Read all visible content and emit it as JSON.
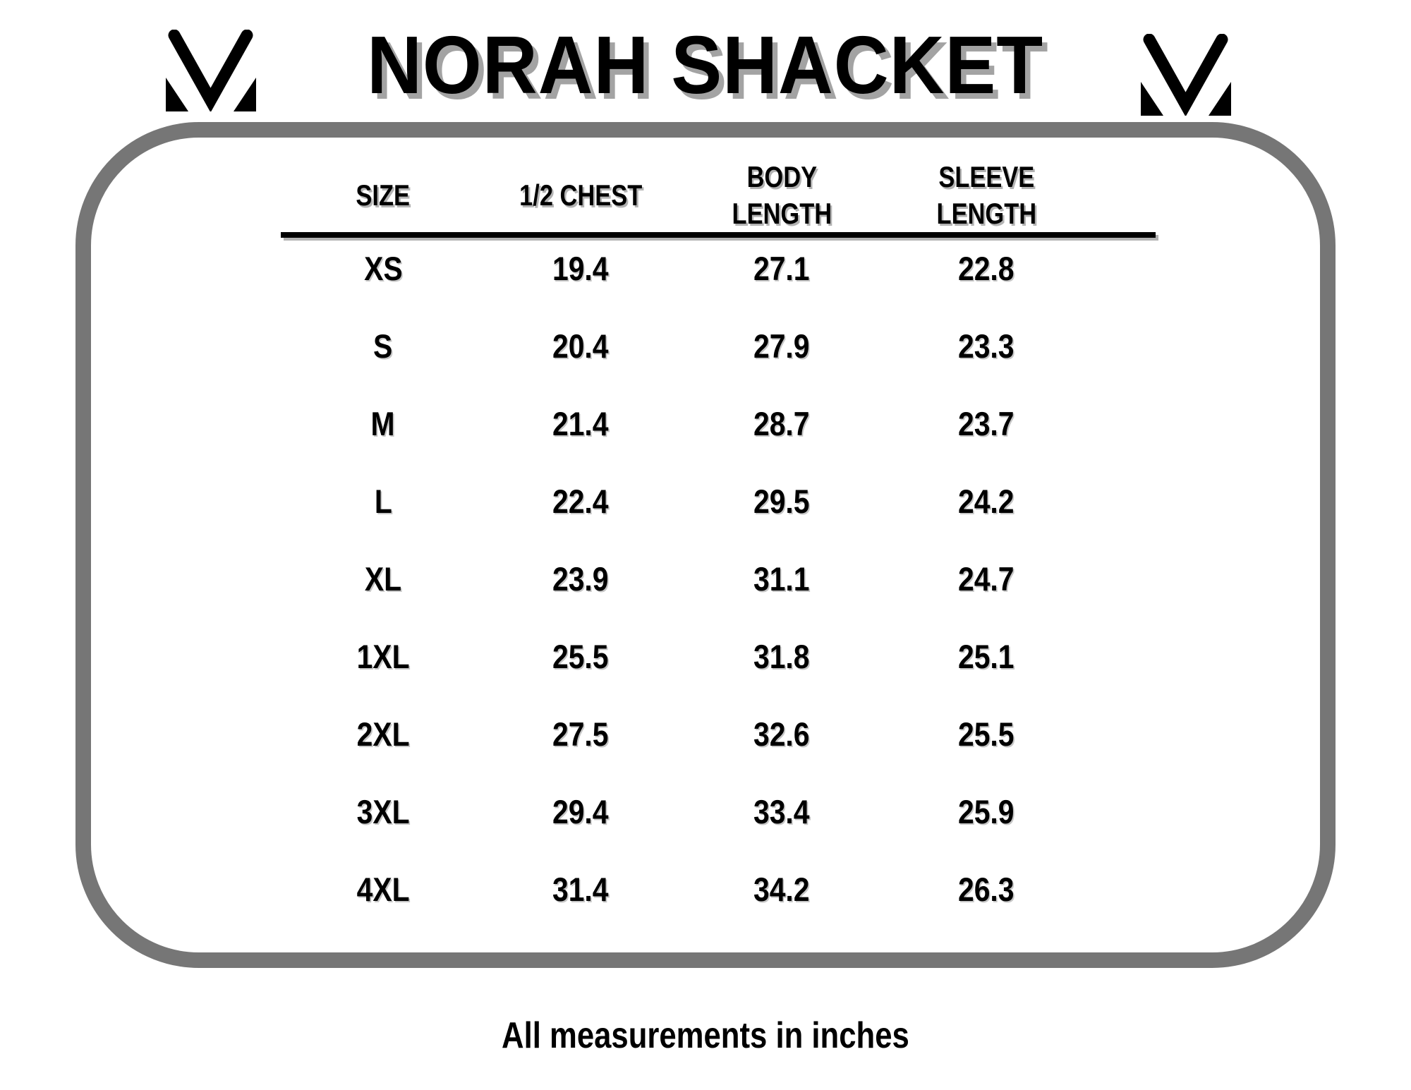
{
  "header": {
    "title": "NORAH SHACKET",
    "logo_icon": "m-monogram"
  },
  "table": {
    "columns": [
      "SIZE",
      "1/2 CHEST",
      "BODY\nLENGTH",
      "SLEEVE\nLENGTH"
    ],
    "rows": [
      [
        "XS",
        "19.4",
        "27.1",
        "22.8"
      ],
      [
        "S",
        "20.4",
        "27.9",
        "23.3"
      ],
      [
        "M",
        "21.4",
        "28.7",
        "23.7"
      ],
      [
        "L",
        "22.4",
        "29.5",
        "24.2"
      ],
      [
        "XL",
        "23.9",
        "31.1",
        "24.7"
      ],
      [
        "1XL",
        "25.5",
        "31.8",
        "25.1"
      ],
      [
        "2XL",
        "27.5",
        "32.6",
        "25.5"
      ],
      [
        "3XL",
        "29.4",
        "33.4",
        "25.9"
      ],
      [
        "4XL",
        "31.4",
        "34.2",
        "26.3"
      ]
    ]
  },
  "footer": {
    "note": "All measurements in inches"
  },
  "colors": {
    "text": "#000000",
    "panel_border_gray": "#767676",
    "title_shadow_gray": "#a3a3a3",
    "header_shadow_gray": "#b3b3b3"
  }
}
